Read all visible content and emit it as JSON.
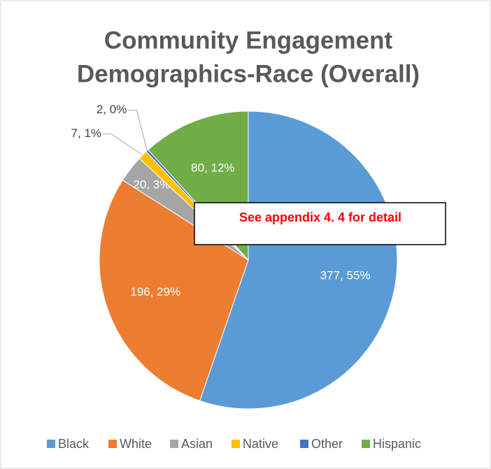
{
  "chart_data": {
    "type": "pie",
    "title": [
      "Community Engagement",
      "Demographics-Race (Overall)"
    ],
    "categories": [
      "Black",
      "White",
      "Asian",
      "Native",
      "Other",
      "Hispanic"
    ],
    "values": [
      377,
      196,
      20,
      7,
      2,
      80
    ],
    "value_labels": [
      "377, 55%",
      "196, 29%",
      "20, 3%",
      "7, 1%",
      "2, 0%",
      "80, 12%"
    ],
    "colors": [
      "#5b9bd5",
      "#ed7d31",
      "#a5a5a5",
      "#ffc000",
      "#4472c4",
      "#70ad47"
    ],
    "legend": "bottom",
    "annotation": "See appendix 4. 4 for detail"
  }
}
